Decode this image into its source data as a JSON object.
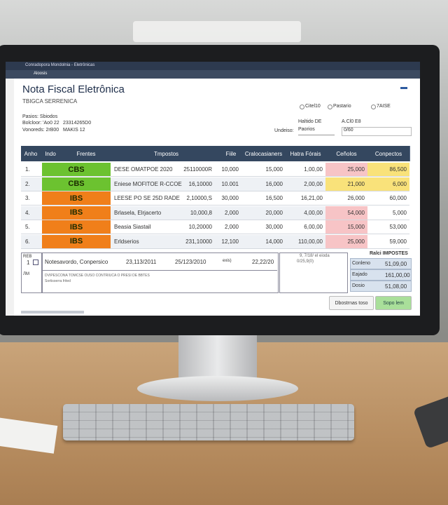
{
  "browser": {
    "tab": "Conradopora Mondolnia - Eletrônicas",
    "address": "Aloosis"
  },
  "header": {
    "title": "Nota Fiscal Eletrônica",
    "subtitle": "TBIGCA SERRENICA"
  },
  "info": [
    "Pasios: Sbiodos",
    "Bolcloor: 'Ao0 22",
    "23314265D0",
    "Vonoreds: 2rB00",
    "MAKIS 12"
  ],
  "options": [
    "Citel10",
    "Pastario",
    "7AISE"
  ],
  "fields": [
    "Haltido DE",
    "A.Cl0 E8",
    "Undeiso:",
    "Paorios",
    "0/60"
  ],
  "table": {
    "headers": [
      "Anho",
      "Indo",
      "Frentes",
      "Tmpostos",
      "Fiile",
      "Cralocasianers",
      "Hatra Fórais",
      "Ceñolos",
      "Conpectos"
    ],
    "rows": [
      [
        "1.",
        "CBS",
        "DESE OMATPOE 2020",
        "25110000R",
        "10,000",
        "15,000",
        "1,00,00",
        "25,000",
        "86,500"
      ],
      [
        "2.",
        "CBS",
        "Eniese MOFITOE R-CCOE",
        "16,10000",
        "10.001",
        "16,000",
        "2,00,00",
        "21,000",
        "6,000"
      ],
      [
        "3.",
        "IBS",
        "LEESE PO SE 25D RADE",
        "2,10000,S",
        "30,000",
        "16,500",
        "16,21,00",
        "26,000",
        "60,000"
      ],
      [
        "4.",
        "IBS",
        "Brlasela, Elrjacerto",
        "10,000,8",
        "2,000",
        "20,000",
        "4,00,00",
        "54,000",
        "5,000"
      ],
      [
        "5.",
        "IBS",
        "Beasia Siastail",
        "10,20000",
        "2,000",
        "30,000",
        "6,00,00",
        "15,000",
        "53,000"
      ],
      [
        "6.",
        "IBS",
        "Erldserios",
        "231,10000",
        "12,100",
        "14,000",
        "110,00,00",
        "25,000",
        "59,000"
      ]
    ]
  },
  "footer": {
    "labels": [
      "REB",
      "1",
      "ЛМ"
    ],
    "note": "Notesavordo, Conpersico",
    "dates": [
      "23,113/2011",
      "25/123/2010",
      "exis)",
      "22,22/20"
    ],
    "lines": [
      "DVIPESCONA TOMCSE OUSO CONTRIUCA O PRESI DE BBTES",
      "Sortisoerra frited"
    ],
    "memo": [
      "9, 7/18/ el eioda",
      "0/25,9(0)"
    ]
  },
  "totals": {
    "title": "Ralci IMPOSTES",
    "rows": [
      [
        "Conleno",
        "51,09,00"
      ],
      [
        "Eajado",
        "161,00,00"
      ],
      [
        "Dosio",
        "51,08,00"
      ]
    ]
  },
  "buttons": [
    "Dbostrnas toso",
    "Sopo lem"
  ]
}
